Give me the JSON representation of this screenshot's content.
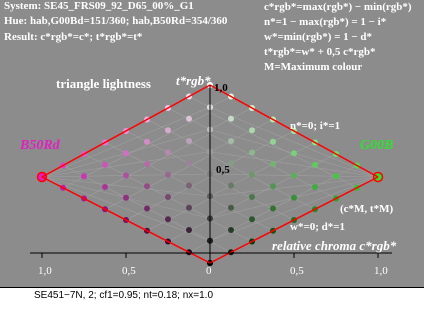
{
  "header": {
    "line1": "System: SE45_FRS09_92_D65_00%_G1",
    "line2": "Hue: hab,G00Bd=151/360; hab,B50Rd=354/360",
    "line3": "Result: c*rgb*=c*; t*rgb*=t*"
  },
  "formulas": {
    "f1": "c*rgb*=max(rgb*) − min(rgb*)",
    "f2": "n*=1 − max(rgb*) = 1 − i*",
    "f3": "w*=min(rgb*) = 1 − d*",
    "f4": "t*rgb*=w* + 0,5 c*rgb*",
    "f5": "M=Maximum colour"
  },
  "labels": {
    "triangle_lightness": "triangle lightness",
    "t_axis": "t*rgb*",
    "t_top": "1,0",
    "t_mid": "0,5",
    "left_hue": "B50Rd",
    "right_hue": "G00B",
    "n0i1": "n*=0; i*=1",
    "cM_tM": "(c*M, t*M)",
    "w0d1": "w*=0; d*=1",
    "relative_chroma": "relative chroma  c*rgb*"
  },
  "axis": {
    "ticks": [
      "1,0",
      "0,5",
      "0",
      "0,5",
      "1,0"
    ]
  },
  "footer": "SE451−7N, 2; cf1=0.95; nt=0.18; nx=1.0",
  "colors": {
    "panel": "#8c8c8c",
    "left_hue": "#e020c0",
    "right_hue": "#30e030",
    "outline": "#ff0000"
  }
}
